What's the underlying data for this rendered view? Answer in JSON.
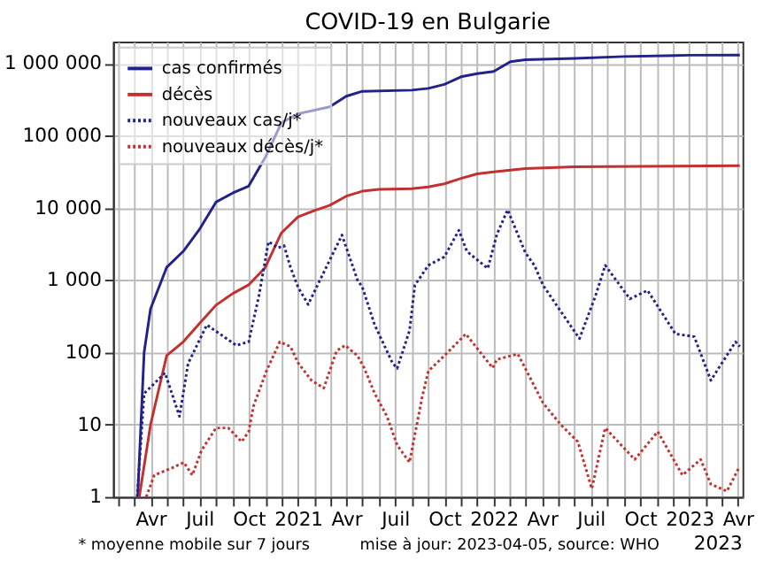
{
  "chart_data": {
    "type": "line",
    "title": "COVID-19 en Bulgarie",
    "log": "y",
    "grid": true,
    "legend": "top left",
    "xlim": [
      "2020-01-22",
      "2023-04-10"
    ],
    "xticks": [
      {
        "value": "2020-02-01",
        "label": null
      },
      {
        "value": "2020-03-01",
        "label": null
      },
      {
        "value": "2020-04-01",
        "label": "Avr"
      },
      {
        "value": "2020-05-01",
        "label": null
      },
      {
        "value": "2020-06-01",
        "label": null
      },
      {
        "value": "2020-07-01",
        "label": "Juil"
      },
      {
        "value": "2020-08-01",
        "label": null
      },
      {
        "value": "2020-09-01",
        "label": null
      },
      {
        "value": "2020-10-01",
        "label": "Oct"
      },
      {
        "value": "2020-11-01",
        "label": null
      },
      {
        "value": "2020-12-01",
        "label": null
      },
      {
        "value": "2021-01-01",
        "label": "2021"
      },
      {
        "value": "2021-02-01",
        "label": null
      },
      {
        "value": "2021-03-01",
        "label": null
      },
      {
        "value": "2021-04-01",
        "label": "Avr"
      },
      {
        "value": "2021-05-01",
        "label": null
      },
      {
        "value": "2021-06-01",
        "label": null
      },
      {
        "value": "2021-07-01",
        "label": "Juil"
      },
      {
        "value": "2021-08-01",
        "label": null
      },
      {
        "value": "2021-09-01",
        "label": null
      },
      {
        "value": "2021-10-01",
        "label": "Oct"
      },
      {
        "value": "2021-11-01",
        "label": null
      },
      {
        "value": "2021-12-01",
        "label": null
      },
      {
        "value": "2022-01-01",
        "label": "2022"
      },
      {
        "value": "2022-02-01",
        "label": null
      },
      {
        "value": "2022-03-01",
        "label": null
      },
      {
        "value": "2022-04-01",
        "label": "Avr"
      },
      {
        "value": "2022-05-01",
        "label": null
      },
      {
        "value": "2022-06-01",
        "label": null
      },
      {
        "value": "2022-07-01",
        "label": "Juil"
      },
      {
        "value": "2022-08-01",
        "label": null
      },
      {
        "value": "2022-09-01",
        "label": null
      },
      {
        "value": "2022-10-01",
        "label": "Oct"
      },
      {
        "value": "2022-11-01",
        "label": null
      },
      {
        "value": "2022-12-01",
        "label": null
      },
      {
        "value": "2023-01-01",
        "label": "2023"
      },
      {
        "value": "2023-02-01",
        "label": null
      },
      {
        "value": "2023-03-01",
        "label": null
      },
      {
        "value": "2023-04-01",
        "label": "Avr"
      }
    ],
    "ylim": [
      1,
      2000000
    ],
    "yticks": [
      1,
      10,
      100,
      {
        "value": 1000,
        "label": "1 000"
      },
      {
        "value": 10000,
        "label": "10 000"
      },
      {
        "value": 100000,
        "label": "100 000"
      },
      {
        "value": 1000000,
        "label": "1 000 000"
      }
    ],
    "annotations": [
      "* moyenne mobile sur 7 jours",
      "mise à jour: 2023-04-05, source: WHO",
      "2023"
    ],
    "series": [
      {
        "name": "cas confirmés",
        "color": "#22228b",
        "line_style": "solid",
        "x": [
          "2020-03-08",
          "2020-03-20",
          "2020-04-01",
          "2020-05-01",
          "2020-06-01",
          "2020-07-01",
          "2020-08-01",
          "2020-09-01",
          "2020-10-01",
          "2020-11-01",
          "2020-12-01",
          "2021-01-01",
          "2021-03-01",
          "2021-04-01",
          "2021-05-01",
          "2021-08-01",
          "2021-09-01",
          "2021-10-01",
          "2021-11-01",
          "2021-12-01",
          "2022-01-01",
          "2022-02-01",
          "2022-03-01",
          "2022-06-01",
          "2022-09-01",
          "2023-01-01",
          "2023-04-05"
        ],
        "values": [
          1,
          100,
          400,
          1500,
          2500,
          5000,
          12000,
          16000,
          20000,
          50000,
          150000,
          200000,
          250000,
          350000,
          410000,
          425000,
          450000,
          510000,
          650000,
          720000,
          770000,
          1050000,
          1120000,
          1170000,
          1240000,
          1295000,
          1300000
        ]
      },
      {
        "name": "décès",
        "color": "#c43030",
        "line_style": "solid",
        "x": [
          "2020-03-11",
          "2020-04-01",
          "2020-05-01",
          "2020-06-01",
          "2020-07-01",
          "2020-08-01",
          "2020-09-01",
          "2020-10-01",
          "2020-11-01",
          "2020-12-01",
          "2021-01-01",
          "2021-02-01",
          "2021-03-01",
          "2021-04-01",
          "2021-05-01",
          "2021-06-01",
          "2021-08-01",
          "2021-09-01",
          "2021-10-01",
          "2021-11-01",
          "2021-12-01",
          "2022-01-01",
          "2022-03-01",
          "2022-06-01",
          "2023-04-05"
        ],
        "values": [
          1,
          10,
          90,
          140,
          250,
          450,
          650,
          860,
          1500,
          4500,
          7500,
          9200,
          10800,
          14500,
          17000,
          18000,
          18400,
          19500,
          21500,
          25500,
          29500,
          31500,
          35000,
          37000,
          38200
        ]
      },
      {
        "name": "nouveaux cas/j*",
        "color": "#22228b",
        "line_style": "dotted",
        "x": [
          "2020-03-07",
          "2020-03-20",
          "2020-04-28",
          "2020-05-25",
          "2020-06-10",
          "2020-07-15",
          "2020-09-08",
          "2020-10-01",
          "2020-10-20",
          "2020-11-07",
          "2020-11-25",
          "2020-12-06",
          "2020-12-18",
          "2021-01-01",
          "2021-01-20",
          "2021-02-08",
          "2021-03-24",
          "2021-04-22",
          "2021-05-01",
          "2021-05-24",
          "2021-06-26",
          "2021-07-05",
          "2021-07-28",
          "2021-08-07",
          "2021-09-01",
          "2021-10-01",
          "2021-10-28",
          "2021-11-12",
          "2021-12-21",
          "2022-01-07",
          "2022-01-27",
          "2022-03-01",
          "2022-03-18",
          "2022-04-03",
          "2022-05-06",
          "2022-06-10",
          "2022-07-10",
          "2022-07-28",
          "2022-09-12",
          "2022-10-15",
          "2022-12-06",
          "2023-01-10",
          "2023-02-10",
          "2023-03-28",
          "2023-04-05"
        ],
        "values": [
          1,
          27,
          52,
          13,
          70,
          240,
          125,
          140,
          600,
          3400,
          2800,
          3000,
          1500,
          800,
          460,
          900,
          4200,
          1000,
          800,
          240,
          72,
          60,
          200,
          850,
          1600,
          2100,
          4900,
          2500,
          1450,
          4300,
          9400,
          2400,
          1600,
          850,
          370,
          155,
          610,
          1600,
          550,
          720,
          180,
          165,
          41,
          140,
          120
        ]
      },
      {
        "name": "nouveaux décès/j*",
        "color": "#c43030",
        "line_style": "dotted",
        "x": [
          "2020-03-24",
          "2020-04-08",
          "2020-05-10",
          "2020-06-02",
          "2020-06-18",
          "2020-07-05",
          "2020-08-01",
          "2020-08-24",
          "2020-09-18",
          "2020-10-01",
          "2020-10-10",
          "2020-11-03",
          "2020-11-28",
          "2020-12-18",
          "2021-01-01",
          "2021-01-26",
          "2021-02-18",
          "2021-03-14",
          "2021-03-30",
          "2021-04-22",
          "2021-05-04",
          "2021-05-24",
          "2021-06-16",
          "2021-07-05",
          "2021-07-28",
          "2021-08-20",
          "2021-09-01",
          "2021-10-01",
          "2021-11-10",
          "2021-12-30",
          "2022-01-07",
          "2022-02-15",
          "2022-04-03",
          "2022-05-06",
          "2022-06-07",
          "2022-07-03",
          "2022-07-28",
          "2022-09-21",
          "2022-11-03",
          "2022-12-19",
          "2023-01-22",
          "2023-02-10",
          "2023-03-12",
          "2023-04-03"
        ],
        "values": [
          1,
          2,
          2.5,
          3,
          2,
          4.4,
          9,
          9,
          5.8,
          8,
          18,
          55,
          140,
          120,
          72,
          41,
          32,
          105,
          125,
          90,
          62,
          27,
          13,
          5.2,
          3,
          23,
          55,
          90,
          180,
          61,
          80,
          95,
          20,
          10,
          5.8,
          1.3,
          9,
          3.3,
          8,
          2,
          3.3,
          1.5,
          1.2,
          2.5
        ]
      }
    ]
  }
}
